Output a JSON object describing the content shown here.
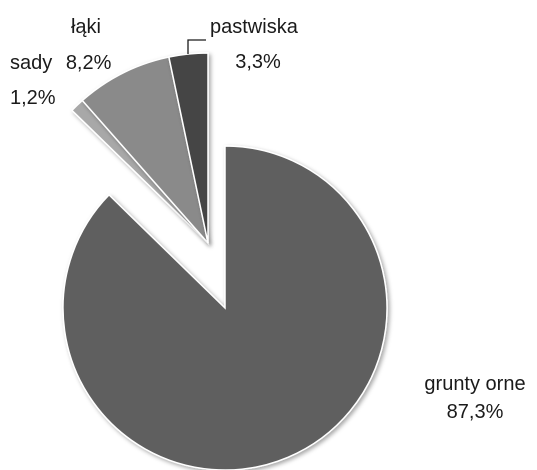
{
  "chart_data": {
    "type": "pie",
    "start_angle_deg": 0,
    "direction": "clockwise",
    "slices": [
      {
        "label": "grunty orne",
        "value_text": "87,3%",
        "value": 87.3,
        "color": "#5e5e5e",
        "exploded": false
      },
      {
        "label": "sady",
        "value_text": "1,2%",
        "value": 1.2,
        "color": "#a8a8a8",
        "exploded": true
      },
      {
        "label": "łąki",
        "value_text": "8,2%",
        "value": 8.2,
        "color": "#8a8a8a",
        "exploded": true
      },
      {
        "label": "pastwiska",
        "value_text": "3,3%",
        "value": 3.3,
        "color": "#454545",
        "exploded": true
      }
    ]
  }
}
